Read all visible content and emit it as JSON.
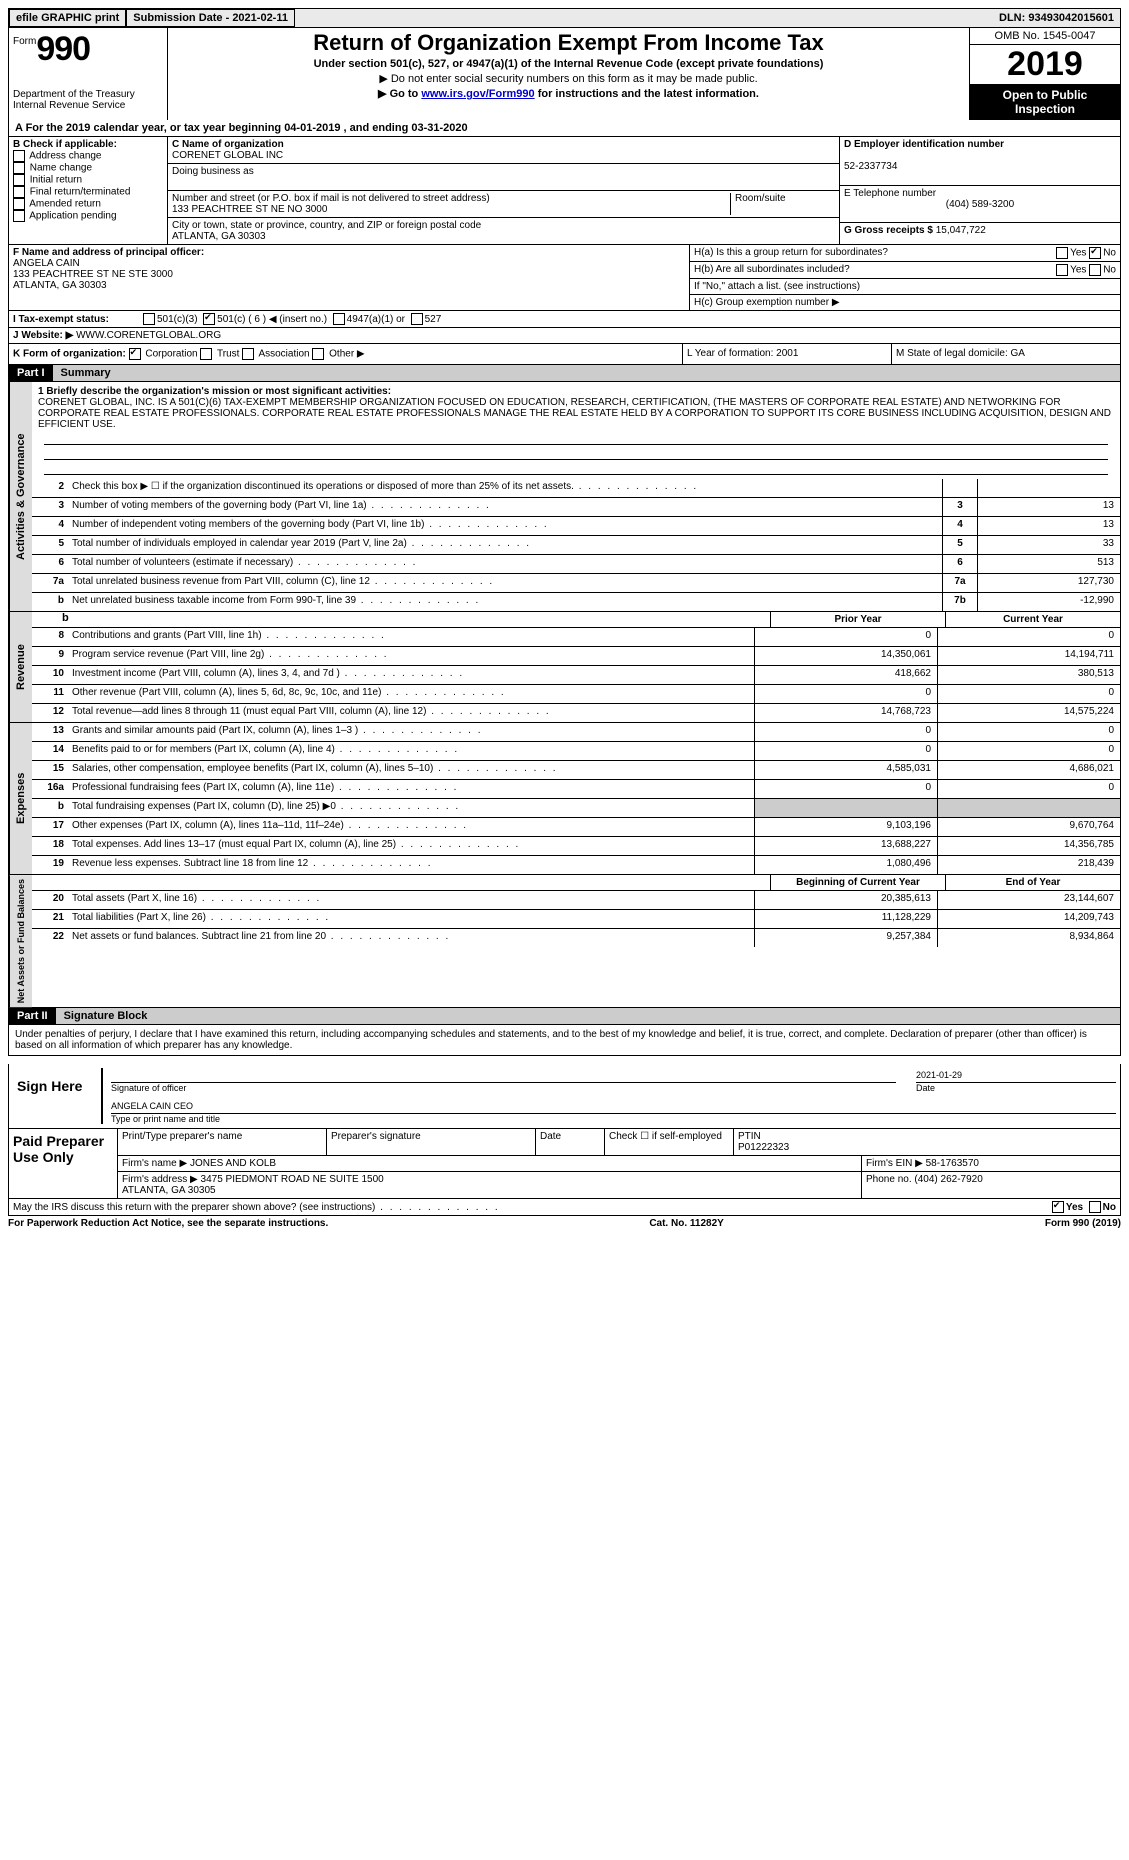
{
  "top": {
    "efile": "efile GRAPHIC print",
    "submission": "Submission Date - 2021-02-11",
    "dln": "DLN: 93493042015601"
  },
  "header": {
    "form_label": "Form",
    "form_num": "990",
    "dept": "Department of the Treasury\nInternal Revenue Service",
    "title": "Return of Organization Exempt From Income Tax",
    "sub1": "Under section 501(c), 527, or 4947(a)(1) of the Internal Revenue Code (except private foundations)",
    "sub2": "▶ Do not enter social security numbers on this form as it may be made public.",
    "sub3_pre": "▶ Go to ",
    "sub3_link": "www.irs.gov/Form990",
    "sub3_post": " for instructions and the latest information.",
    "omb": "OMB No. 1545-0047",
    "year": "2019",
    "open": "Open to Public Inspection"
  },
  "period": "A For the 2019 calendar year, or tax year beginning 04-01-2019    , and ending 03-31-2020",
  "B": {
    "label": "B Check if applicable:",
    "items": [
      "Address change",
      "Name change",
      "Initial return",
      "Final return/terminated",
      "Amended return",
      "Application pending"
    ]
  },
  "C": {
    "name_label": "C Name of organization",
    "name": "CORENET GLOBAL INC",
    "dba_label": "Doing business as",
    "dba": "",
    "street_label": "Number and street (or P.O. box if mail is not delivered to street address)",
    "street": "133 PEACHTREE ST NE NO 3000",
    "room_label": "Room/suite",
    "city_label": "City or town, state or province, country, and ZIP or foreign postal code",
    "city": "ATLANTA, GA  30303"
  },
  "D": {
    "label": "D Employer identification number",
    "value": "52-2337734"
  },
  "E": {
    "label": "E Telephone number",
    "value": "(404) 589-3200"
  },
  "G": {
    "label": "G Gross receipts $",
    "value": "15,047,722"
  },
  "F": {
    "label": "F  Name and address of principal officer:",
    "name": "ANGELA CAIN",
    "addr1": "133 PEACHTREE ST NE STE 3000",
    "addr2": "ATLANTA, GA  30303"
  },
  "H": {
    "a_label": "H(a)  Is this a group return for subordinates?",
    "a_yes": "Yes",
    "a_no": "No",
    "b_label": "H(b)  Are all subordinates included?",
    "b_note": "If \"No,\" attach a list. (see instructions)",
    "c_label": "H(c)  Group exemption number ▶"
  },
  "I": {
    "label": "I   Tax-exempt status:",
    "opts": [
      "501(c)(3)",
      "501(c) ( 6 ) ◀ (insert no.)",
      "4947(a)(1) or",
      "527"
    ]
  },
  "J": {
    "label": "J   Website: ▶",
    "value": "WWW.CORENETGLOBAL.ORG"
  },
  "K": {
    "label": "K Form of organization:",
    "opts": [
      "Corporation",
      "Trust",
      "Association",
      "Other ▶"
    ],
    "L": "L Year of formation: 2001",
    "M": "M State of legal domicile: GA"
  },
  "part1": {
    "num": "Part I",
    "title": "Summary"
  },
  "mission": {
    "label": "1   Briefly describe the organization's mission or most significant activities:",
    "text": "CORENET GLOBAL, INC. IS A 501(C)(6) TAX-EXEMPT MEMBERSHIP ORGANIZATION FOCUSED ON EDUCATION, RESEARCH, CERTIFICATION, (THE MASTERS OF CORPORATE REAL ESTATE) AND NETWORKING FOR CORPORATE REAL ESTATE PROFESSIONALS. CORPORATE REAL ESTATE PROFESSIONALS MANAGE THE REAL ESTATE HELD BY A CORPORATION TO SUPPORT ITS CORE BUSINESS INCLUDING ACQUISITION, DESIGN AND EFFICIENT USE."
  },
  "gov_rows": [
    {
      "n": "2",
      "d": "Check this box ▶ ☐ if the organization discontinued its operations or disposed of more than 25% of its net assets.",
      "box": "",
      "v": ""
    },
    {
      "n": "3",
      "d": "Number of voting members of the governing body (Part VI, line 1a)",
      "box": "3",
      "v": "13"
    },
    {
      "n": "4",
      "d": "Number of independent voting members of the governing body (Part VI, line 1b)",
      "box": "4",
      "v": "13"
    },
    {
      "n": "5",
      "d": "Total number of individuals employed in calendar year 2019 (Part V, line 2a)",
      "box": "5",
      "v": "33"
    },
    {
      "n": "6",
      "d": "Total number of volunteers (estimate if necessary)",
      "box": "6",
      "v": "513"
    },
    {
      "n": "7a",
      "d": "Total unrelated business revenue from Part VIII, column (C), line 12",
      "box": "7a",
      "v": "127,730"
    },
    {
      "n": "b",
      "d": "Net unrelated business taxable income from Form 990-T, line 39",
      "box": "7b",
      "v": "-12,990"
    }
  ],
  "rev_head": {
    "prior": "Prior Year",
    "current": "Current Year"
  },
  "rev_rows": [
    {
      "n": "8",
      "d": "Contributions and grants (Part VIII, line 1h)",
      "p": "0",
      "c": "0"
    },
    {
      "n": "9",
      "d": "Program service revenue (Part VIII, line 2g)",
      "p": "14,350,061",
      "c": "14,194,711"
    },
    {
      "n": "10",
      "d": "Investment income (Part VIII, column (A), lines 3, 4, and 7d )",
      "p": "418,662",
      "c": "380,513"
    },
    {
      "n": "11",
      "d": "Other revenue (Part VIII, column (A), lines 5, 6d, 8c, 9c, 10c, and 11e)",
      "p": "0",
      "c": "0"
    },
    {
      "n": "12",
      "d": "Total revenue—add lines 8 through 11 (must equal Part VIII, column (A), line 12)",
      "p": "14,768,723",
      "c": "14,575,224"
    }
  ],
  "exp_rows": [
    {
      "n": "13",
      "d": "Grants and similar amounts paid (Part IX, column (A), lines 1–3 )",
      "p": "0",
      "c": "0"
    },
    {
      "n": "14",
      "d": "Benefits paid to or for members (Part IX, column (A), line 4)",
      "p": "0",
      "c": "0"
    },
    {
      "n": "15",
      "d": "Salaries, other compensation, employee benefits (Part IX, column (A), lines 5–10)",
      "p": "4,585,031",
      "c": "4,686,021"
    },
    {
      "n": "16a",
      "d": "Professional fundraising fees (Part IX, column (A), line 11e)",
      "p": "0",
      "c": "0"
    },
    {
      "n": "b",
      "d": "Total fundraising expenses (Part IX, column (D), line 25) ▶0",
      "p": "",
      "c": "",
      "gray": true
    },
    {
      "n": "17",
      "d": "Other expenses (Part IX, column (A), lines 11a–11d, 11f–24e)",
      "p": "9,103,196",
      "c": "9,670,764"
    },
    {
      "n": "18",
      "d": "Total expenses. Add lines 13–17 (must equal Part IX, column (A), line 25)",
      "p": "13,688,227",
      "c": "14,356,785"
    },
    {
      "n": "19",
      "d": "Revenue less expenses. Subtract line 18 from line 12",
      "p": "1,080,496",
      "c": "218,439"
    }
  ],
  "na_head": {
    "prior": "Beginning of Current Year",
    "current": "End of Year"
  },
  "na_rows": [
    {
      "n": "20",
      "d": "Total assets (Part X, line 16)",
      "p": "20,385,613",
      "c": "23,144,607"
    },
    {
      "n": "21",
      "d": "Total liabilities (Part X, line 26)",
      "p": "11,128,229",
      "c": "14,209,743"
    },
    {
      "n": "22",
      "d": "Net assets or fund balances. Subtract line 21 from line 20",
      "p": "9,257,384",
      "c": "8,934,864"
    }
  ],
  "vlabels": {
    "gov": "Activities & Governance",
    "rev": "Revenue",
    "exp": "Expenses",
    "na": "Net Assets or Fund Balances"
  },
  "part2": {
    "num": "Part II",
    "title": "Signature Block"
  },
  "perjury": "Under penalties of perjury, I declare that I have examined this return, including accompanying schedules and statements, and to the best of my knowledge and belief, it is true, correct, and complete. Declaration of preparer (other than officer) is based on all information of which preparer has any knowledge.",
  "sign": {
    "here": "Sign Here",
    "sig_label": "Signature of officer",
    "date": "2021-01-29",
    "date_label": "Date",
    "name": "ANGELA CAIN  CEO",
    "name_label": "Type or print name and title"
  },
  "prep": {
    "title": "Paid Preparer Use Only",
    "h1": "Print/Type preparer's name",
    "h2": "Preparer's signature",
    "h3": "Date",
    "h4": "Check ☐ if self-employed",
    "h5_label": "PTIN",
    "h5": "P01222323",
    "firm_label": "Firm's name   ▶",
    "firm": "JONES AND KOLB",
    "ein_label": "Firm's EIN ▶",
    "ein": "58-1763570",
    "addr_label": "Firm's address ▶",
    "addr": "3475 PIEDMONT ROAD NE SUITE 1500\nATLANTA, GA  30305",
    "phone_label": "Phone no.",
    "phone": "(404) 262-7920"
  },
  "discuss": {
    "q": "May the IRS discuss this return with the preparer shown above? (see instructions)",
    "yes": "Yes",
    "no": "No"
  },
  "footer": {
    "left": "For Paperwork Reduction Act Notice, see the separate instructions.",
    "mid": "Cat. No. 11282Y",
    "right": "Form 990 (2019)"
  }
}
